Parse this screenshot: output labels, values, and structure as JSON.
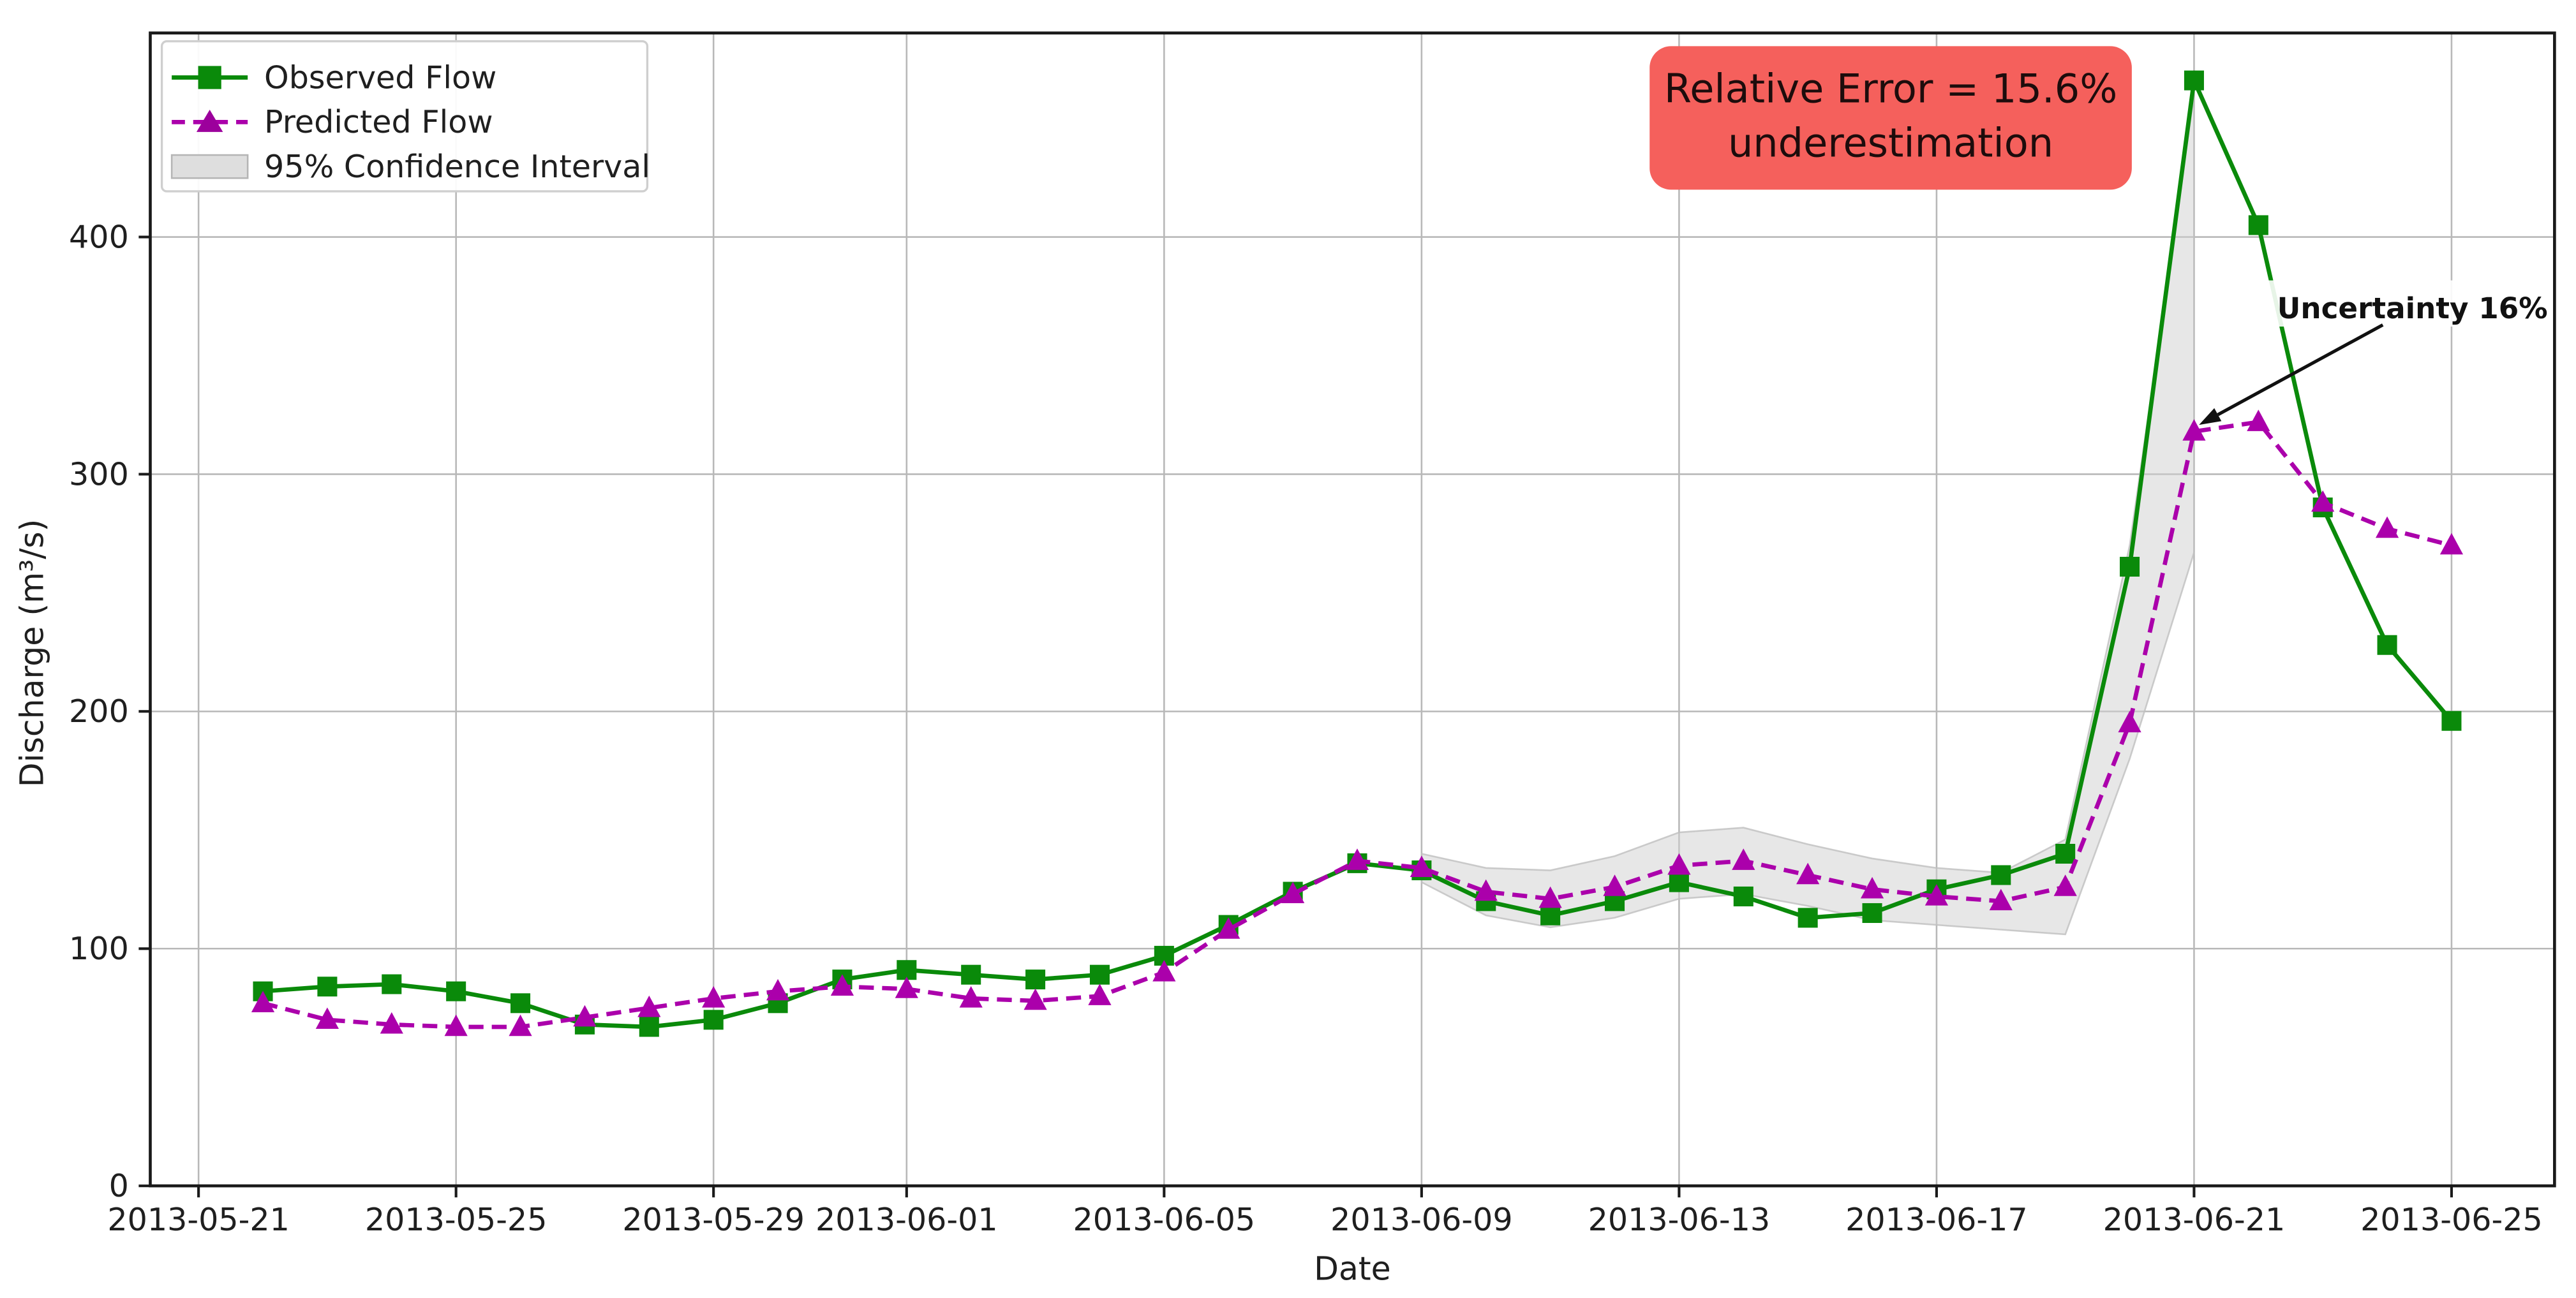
{
  "chart_data": {
    "type": "line",
    "title": "",
    "xlabel": "Date",
    "ylabel": "Discharge (m³/s)",
    "x": [
      "2013-05-22",
      "2013-05-23",
      "2013-05-24",
      "2013-05-25",
      "2013-05-26",
      "2013-05-27",
      "2013-05-28",
      "2013-05-29",
      "2013-05-30",
      "2013-05-31",
      "2013-06-01",
      "2013-06-02",
      "2013-06-03",
      "2013-06-04",
      "2013-06-05",
      "2013-06-06",
      "2013-06-07",
      "2013-06-08",
      "2013-06-09",
      "2013-06-10",
      "2013-06-11",
      "2013-06-12",
      "2013-06-13",
      "2013-06-14",
      "2013-06-15",
      "2013-06-16",
      "2013-06-17",
      "2013-06-18",
      "2013-06-19",
      "2013-06-20",
      "2013-06-21",
      "2013-06-22",
      "2013-06-23",
      "2013-06-24",
      "2013-06-25"
    ],
    "series": [
      {
        "name": "Observed Flow",
        "color": "#0a8a0a",
        "marker": "square",
        "line_style": "solid",
        "values": [
          82,
          84,
          85,
          82,
          77,
          68,
          67,
          70,
          77,
          87,
          91,
          89,
          87,
          89,
          97,
          110,
          124,
          136,
          133,
          120,
          114,
          120,
          128,
          122,
          113,
          115,
          125,
          131,
          140,
          261,
          466,
          405,
          286,
          228,
          196
        ]
      },
      {
        "name": "Predicted Flow",
        "color": "#ab00ab",
        "marker": "triangle",
        "line_style": "dashed",
        "values": [
          77,
          70,
          68,
          67,
          67,
          71,
          75,
          79,
          82,
          84,
          83,
          79,
          78,
          80,
          90,
          108,
          123,
          137,
          134,
          124,
          121,
          126,
          135,
          137,
          131,
          125,
          122,
          120,
          126,
          195,
          318,
          322,
          288,
          277,
          270
        ]
      }
    ],
    "confidence_band": {
      "name": "95% Confidence Interval",
      "color": "#d0d0d0",
      "start_date": "2013-06-09",
      "lower": [
        128,
        114,
        109,
        113,
        121,
        123,
        118,
        112,
        110,
        108,
        106,
        180,
        267
      ],
      "upper": [
        140,
        134,
        133,
        139,
        149,
        151,
        144,
        138,
        134,
        132,
        146,
        270,
        460
      ]
    },
    "ylim": [
      0,
      486
    ],
    "yticks": [
      0,
      100,
      200,
      300,
      400
    ],
    "xticks": [
      "2013-05-21",
      "2013-05-25",
      "2013-05-29",
      "2013-06-01",
      "2013-06-05",
      "2013-06-09",
      "2013-06-13",
      "2013-06-17",
      "2013-06-21",
      "2013-06-25"
    ],
    "xlim_days": [
      -1.75,
      35.6
    ],
    "grid": true,
    "legend_position": "upper left"
  },
  "annotations": {
    "error_box": {
      "line1": "Relative Error = 15.6%",
      "line2": "underestimation",
      "bg_color": "#f5605c",
      "text_color": "#1d0c0c"
    },
    "uncertainty": {
      "label": "Uncertainty 16%",
      "target_date": "2013-06-21",
      "target_series": "Predicted Flow"
    }
  }
}
